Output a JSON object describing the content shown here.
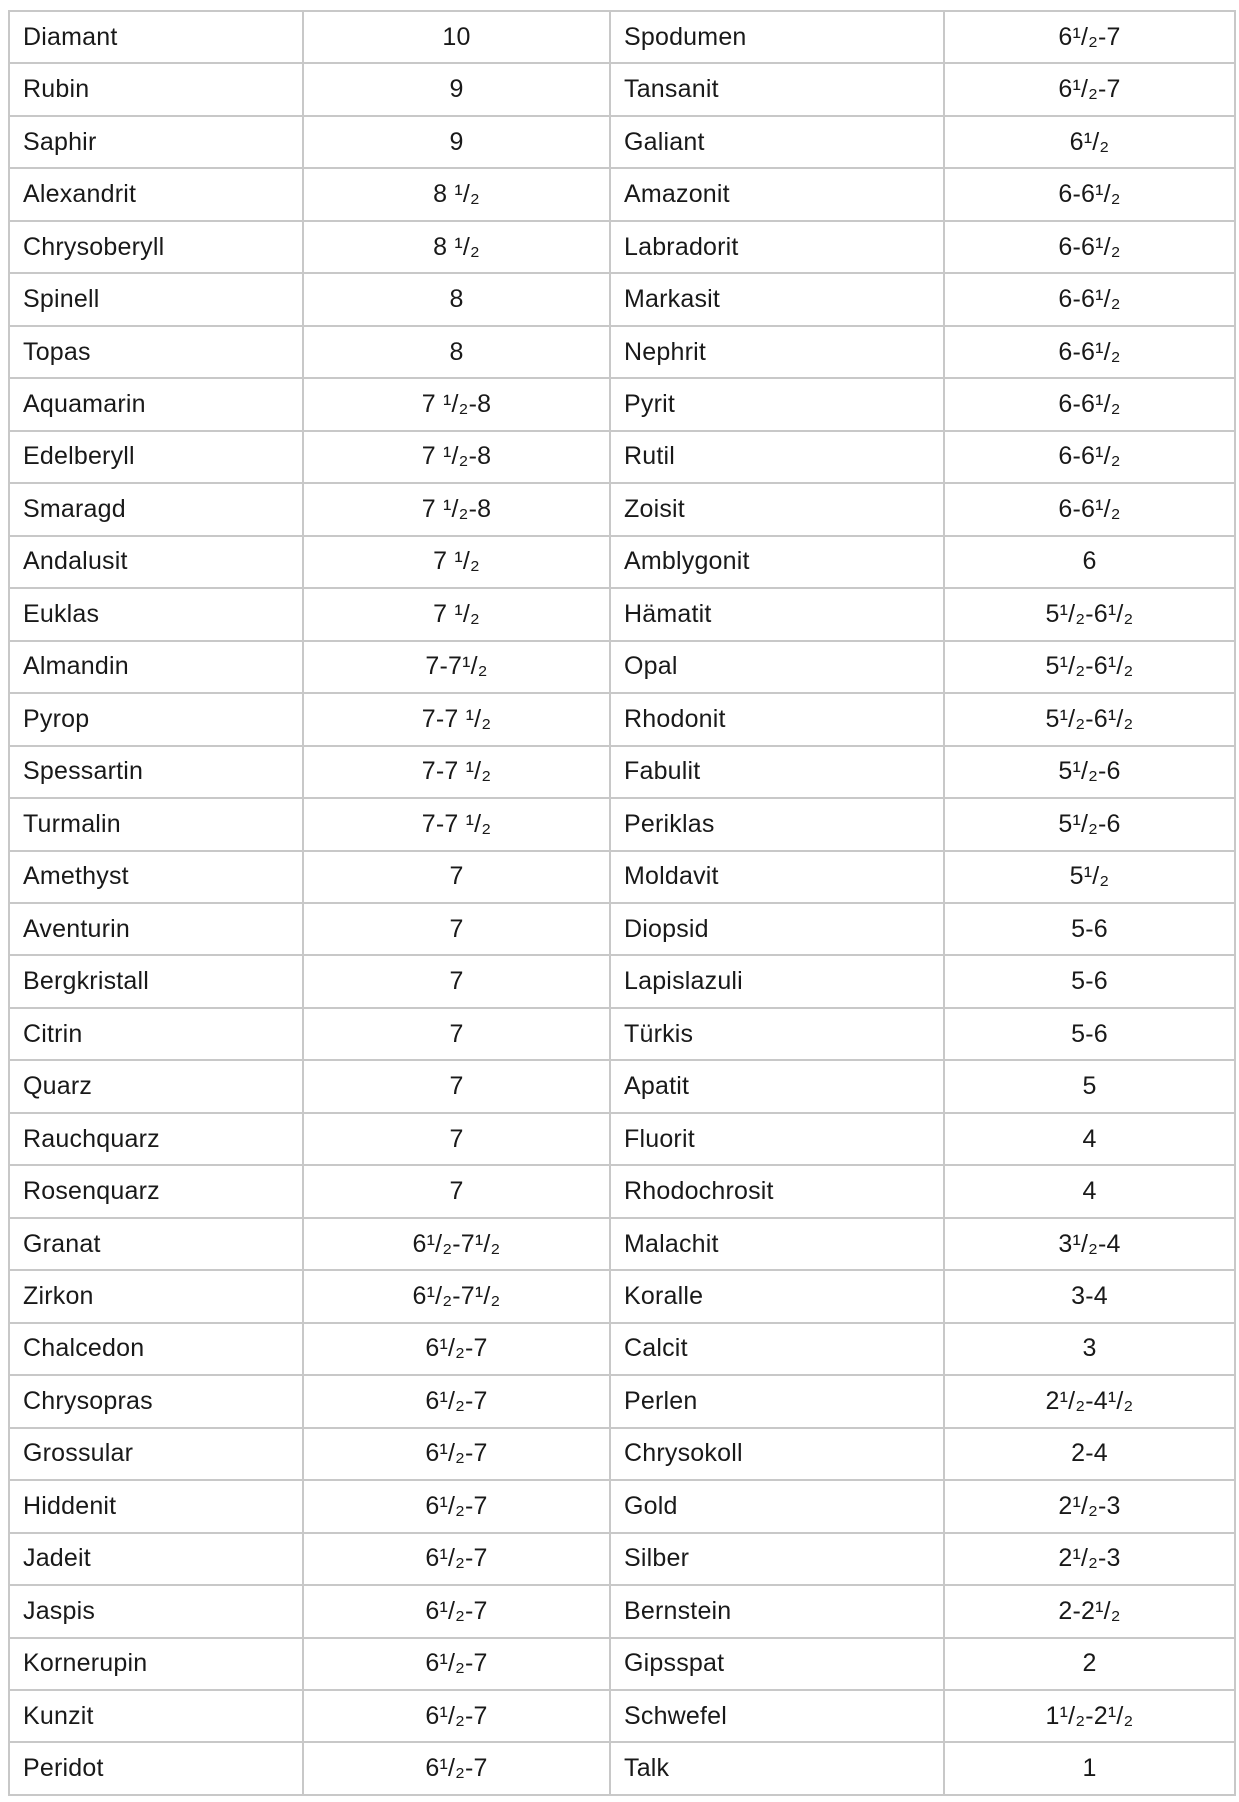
{
  "colors": {
    "background": "#ffffff",
    "text": "#191919",
    "grid": "#c8c8c8"
  },
  "chart_data": {
    "type": "table",
    "grid": true,
    "header_row": false,
    "rows": [
      [
        "Diamant",
        "10",
        "Spodumen",
        "6¹/₂-7"
      ],
      [
        "Rubin",
        "9",
        "Tansanit",
        "6¹/₂-7"
      ],
      [
        "Saphir",
        "9",
        "Galiant",
        "6¹/₂"
      ],
      [
        "Alexandrit",
        "8 ¹/₂",
        "Amazonit",
        "6-6¹/₂"
      ],
      [
        "Chrysoberyll",
        "8 ¹/₂",
        "Labradorit",
        "6-6¹/₂"
      ],
      [
        "Spinell",
        "8",
        "Markasit",
        "6-6¹/₂"
      ],
      [
        "Topas",
        "8",
        "Nephrit",
        "6-6¹/₂"
      ],
      [
        "Aquamarin",
        "7 ¹/₂-8",
        "Pyrit",
        "6-6¹/₂"
      ],
      [
        "Edelberyll",
        "7 ¹/₂-8",
        "Rutil",
        "6-6¹/₂"
      ],
      [
        "Smaragd",
        "7 ¹/₂-8",
        "Zoisit",
        "6-6¹/₂"
      ],
      [
        "Andalusit",
        "7 ¹/₂",
        "Amblygonit",
        "6"
      ],
      [
        "Euklas",
        "7 ¹/₂",
        "Hämatit",
        "5¹/₂-6¹/₂"
      ],
      [
        "Almandin",
        "7-7¹/₂",
        "Opal",
        "5¹/₂-6¹/₂"
      ],
      [
        "Pyrop",
        "7-7 ¹/₂",
        "Rhodonit",
        "5¹/₂-6¹/₂"
      ],
      [
        "Spessartin",
        "7-7 ¹/₂",
        "Fabulit",
        "5¹/₂-6"
      ],
      [
        "Turmalin",
        "7-7 ¹/₂",
        "Periklas",
        "5¹/₂-6"
      ],
      [
        "Amethyst",
        "7",
        "Moldavit",
        "5¹/₂"
      ],
      [
        "Aventurin",
        "7",
        "Diopsid",
        "5-6"
      ],
      [
        "Bergkristall",
        "7",
        "Lapislazuli",
        "5-6"
      ],
      [
        "Citrin",
        "7",
        "Türkis",
        "5-6"
      ],
      [
        "Quarz",
        "7",
        "Apatit",
        "5"
      ],
      [
        "Rauchquarz",
        "7",
        "Fluorit",
        "4"
      ],
      [
        "Rosenquarz",
        "7",
        "Rhodochrosit",
        "4"
      ],
      [
        "Granat",
        "6¹/₂-7¹/₂",
        "Malachit",
        "3¹/₂-4"
      ],
      [
        "Zirkon",
        "6¹/₂-7¹/₂",
        "Koralle",
        "3-4"
      ],
      [
        "Chalcedon",
        "6¹/₂-7",
        "Calcit",
        "3"
      ],
      [
        "Chrysopras",
        "6¹/₂-7",
        "Perlen",
        "2¹/₂-4¹/₂"
      ],
      [
        "Grossular",
        "6¹/₂-7",
        "Chrysokoll",
        "2-4"
      ],
      [
        "Hiddenit",
        "6¹/₂-7",
        "Gold",
        "2¹/₂-3"
      ],
      [
        "Jadeit",
        "6¹/₂-7",
        "Silber",
        "2¹/₂-3"
      ],
      [
        "Jaspis",
        "6¹/₂-7",
        "Bernstein",
        "2-2¹/₂"
      ],
      [
        "Kornerupin",
        "6¹/₂-7",
        "Gipsspat",
        "2"
      ],
      [
        "Kunzit",
        "6¹/₂-7",
        "Schwefel",
        "1¹/₂-2¹/₂"
      ],
      [
        "Peridot",
        "6¹/₂-7",
        "Talk",
        "1"
      ]
    ]
  }
}
